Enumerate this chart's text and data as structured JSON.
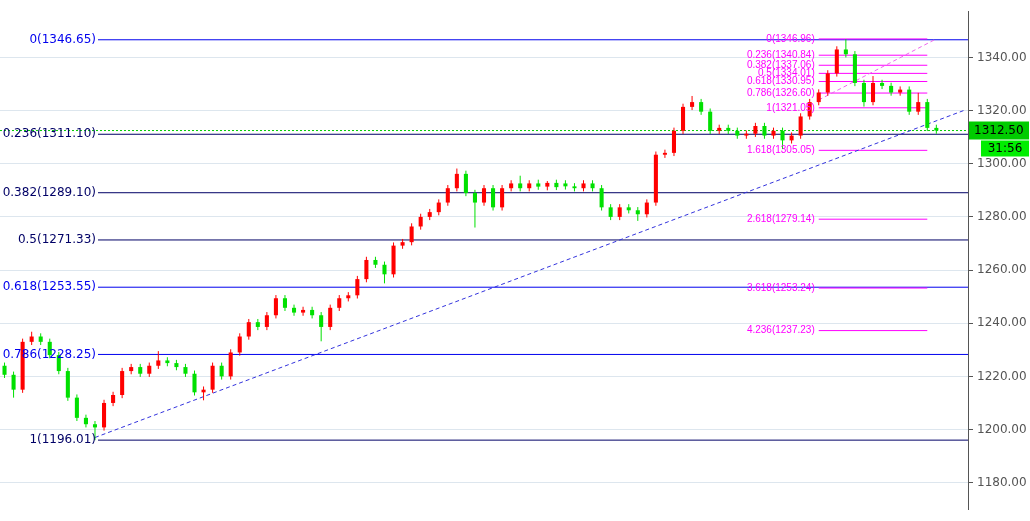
{
  "chart_data": {
    "type": "candlestick",
    "categories": [
      null,
      null,
      null,
      null,
      null,
      null,
      null,
      null,
      null,
      null,
      null,
      null,
      null,
      null,
      null,
      null,
      null,
      null,
      null,
      null,
      null,
      null,
      null,
      null,
      null,
      null,
      null,
      null,
      null,
      null,
      null,
      null,
      null,
      null,
      null,
      null,
      null,
      null,
      null,
      null,
      null,
      null,
      null,
      null,
      null,
      null,
      null,
      null,
      null,
      null,
      null,
      null,
      null,
      null,
      null,
      null,
      null,
      null,
      null,
      null,
      null,
      null,
      null,
      null,
      null,
      null,
      null,
      null,
      null,
      null,
      null,
      null,
      null,
      null,
      null,
      null,
      null,
      null,
      null,
      null,
      null,
      null,
      null,
      null,
      null,
      null,
      null,
      null,
      null,
      null,
      null,
      null,
      null,
      null,
      null,
      null,
      null,
      null,
      null,
      null,
      null,
      null,
      null,
      null,
      null,
      null,
      null
    ],
    "ohlc": [
      [
        1224,
        1225.2,
        1219.4,
        1220.6
      ],
      [
        1220.6,
        1221.8,
        1212,
        1215
      ],
      [
        1215,
        1234.2,
        1213.8,
        1233
      ],
      [
        1233,
        1236.8,
        1231.8,
        1235
      ],
      [
        1235,
        1236.2,
        1231.8,
        1233
      ],
      [
        1233,
        1234.2,
        1226.8,
        1228
      ],
      [
        1228,
        1229.2,
        1220.8,
        1222
      ],
      [
        1222,
        1223.2,
        1210.8,
        1212
      ],
      [
        1212,
        1213.2,
        1203.2,
        1204.4
      ],
      [
        1204.4,
        1205.6,
        1200.8,
        1202
      ],
      [
        1202,
        1203.2,
        1196,
        1200.8
      ],
      [
        1200.8,
        1211.2,
        1199.6,
        1210
      ],
      [
        1210,
        1214.2,
        1208.8,
        1213
      ],
      [
        1213,
        1223.2,
        1211.8,
        1222
      ],
      [
        1222,
        1224.7,
        1220.8,
        1223.5
      ],
      [
        1223.5,
        1224.7,
        1219.8,
        1221
      ],
      [
        1221,
        1225.2,
        1219.8,
        1224
      ],
      [
        1224,
        1229.5,
        1222.8,
        1226
      ],
      [
        1226,
        1227.2,
        1223.8,
        1225
      ],
      [
        1225,
        1226.2,
        1222.3,
        1223.5
      ],
      [
        1223.5,
        1224.7,
        1219.8,
        1221
      ],
      [
        1221,
        1222.2,
        1212.8,
        1214
      ],
      [
        1214,
        1216.2,
        1211,
        1215
      ],
      [
        1215,
        1225.2,
        1213.8,
        1224
      ],
      [
        1224,
        1225.2,
        1218.8,
        1220
      ],
      [
        1220,
        1230.2,
        1218.8,
        1229
      ],
      [
        1229,
        1236.2,
        1227.8,
        1235
      ],
      [
        1235,
        1241.6,
        1233.8,
        1240.4
      ],
      [
        1240.4,
        1241.6,
        1237.4,
        1238.6
      ],
      [
        1238.6,
        1244.2,
        1237.4,
        1243
      ],
      [
        1243,
        1250.6,
        1241.8,
        1249.4
      ],
      [
        1249.4,
        1250.6,
        1244.6,
        1245.8
      ],
      [
        1245.8,
        1247,
        1242.8,
        1244
      ],
      [
        1244,
        1246.2,
        1242.8,
        1245
      ],
      [
        1245,
        1246.2,
        1241.8,
        1243
      ],
      [
        1243,
        1244.2,
        1233.2,
        1238.6
      ],
      [
        1238.6,
        1247,
        1237.4,
        1245.8
      ],
      [
        1245.8,
        1250.6,
        1244.6,
        1249.4
      ],
      [
        1249.4,
        1251.7,
        1248.2,
        1250.5
      ],
      [
        1250.5,
        1257.8,
        1249.3,
        1256.6
      ],
      [
        1256.6,
        1265,
        1255.4,
        1263.8
      ],
      [
        1263.8,
        1265,
        1260.8,
        1262
      ],
      [
        1262,
        1263.2,
        1255,
        1258.4
      ],
      [
        1258.4,
        1270.4,
        1257.2,
        1269.2
      ],
      [
        1269.2,
        1271.7,
        1268,
        1270.5
      ],
      [
        1270.5,
        1277.6,
        1269.3,
        1276.4
      ],
      [
        1276.4,
        1281.2,
        1275.2,
        1280
      ],
      [
        1280,
        1283,
        1278.8,
        1281.8
      ],
      [
        1281.8,
        1286.6,
        1280.6,
        1285.4
      ],
      [
        1285.4,
        1292,
        1284.2,
        1290.8
      ],
      [
        1290.8,
        1298.2,
        1289.6,
        1296.2
      ],
      [
        1296.2,
        1297.4,
        1287.8,
        1289
      ],
      [
        1289,
        1290.2,
        1276,
        1285.4
      ],
      [
        1285.4,
        1292,
        1284.2,
        1290.8
      ],
      [
        1290.8,
        1292,
        1282.4,
        1283.6
      ],
      [
        1283.6,
        1292,
        1282.4,
        1290.8
      ],
      [
        1290.8,
        1293.8,
        1289.6,
        1292.6
      ],
      [
        1292.6,
        1295.5,
        1289.6,
        1290.8
      ],
      [
        1290.8,
        1293.8,
        1289.6,
        1292.6
      ],
      [
        1292.6,
        1294,
        1290.2,
        1291.4
      ],
      [
        1291.4,
        1293.5,
        1290,
        1292.8
      ],
      [
        1292.8,
        1294,
        1290.1,
        1291.2
      ],
      [
        1292.6,
        1293.8,
        1290.3,
        1291.5
      ],
      [
        1291.5,
        1292.7,
        1289.6,
        1290.8
      ],
      [
        1290.8,
        1293.8,
        1289.6,
        1292.6
      ],
      [
        1292.6,
        1293.8,
        1289.6,
        1290.8
      ],
      [
        1290.8,
        1292,
        1282.4,
        1283.6
      ],
      [
        1283.6,
        1284.8,
        1278.8,
        1280
      ],
      [
        1280,
        1284.8,
        1278.8,
        1283.6
      ],
      [
        1283.6,
        1284.8,
        1281.3,
        1282.5
      ],
      [
        1282.5,
        1283.7,
        1278.5,
        1281
      ],
      [
        1281,
        1286.6,
        1279.8,
        1285.4
      ],
      [
        1285.4,
        1304.6,
        1284.2,
        1303.4
      ],
      [
        1303.4,
        1305.3,
        1302.2,
        1304.1
      ],
      [
        1304.1,
        1313.6,
        1302.9,
        1312.4
      ],
      [
        1312.4,
        1322.6,
        1311.2,
        1321.4
      ],
      [
        1321.4,
        1325.5,
        1320.2,
        1323.2
      ],
      [
        1323.2,
        1324.4,
        1318.4,
        1319.6
      ],
      [
        1319.6,
        1320.8,
        1311.2,
        1312.4
      ],
      [
        1312.4,
        1314.7,
        1311.2,
        1313.5
      ],
      [
        1313.5,
        1314.7,
        1311.2,
        1312.4
      ],
      [
        1312.4,
        1313.6,
        1309.4,
        1310.6
      ],
      [
        1310.6,
        1312.5,
        1309.4,
        1311.3
      ],
      [
        1311.3,
        1315.4,
        1310.1,
        1314.2
      ],
      [
        1314.2,
        1315.4,
        1309.4,
        1310.6
      ],
      [
        1310.6,
        1313.6,
        1309.4,
        1312.4
      ],
      [
        1312.4,
        1313.6,
        1305.5,
        1308.8
      ],
      [
        1308.8,
        1311.8,
        1307.6,
        1310.6
      ],
      [
        1310.6,
        1319,
        1309.4,
        1317.8
      ],
      [
        1317.8,
        1324.4,
        1316.6,
        1323.2
      ],
      [
        1323.2,
        1328,
        1322,
        1326.8
      ],
      [
        1326.8,
        1335.2,
        1325.6,
        1334
      ],
      [
        1334,
        1344.2,
        1332.8,
        1343
      ],
      [
        1343,
        1346.9,
        1340,
        1341.2
      ],
      [
        1341.2,
        1342.4,
        1329.2,
        1330.4
      ],
      [
        1330.4,
        1331.6,
        1321.5,
        1323.2
      ],
      [
        1323.2,
        1333,
        1322,
        1330.4
      ],
      [
        1330.4,
        1331.6,
        1328.1,
        1329.3
      ],
      [
        1329.3,
        1330.5,
        1325.6,
        1326.8
      ],
      [
        1326.8,
        1329.1,
        1325.6,
        1327.9
      ],
      [
        1327.9,
        1329.1,
        1318.4,
        1319.6
      ],
      [
        1319.6,
        1326.7,
        1318.4,
        1323.2
      ],
      [
        1323.2,
        1324.4,
        1312.3,
        1313.5
      ],
      [
        1313.5,
        1314.7,
        1311.3,
        1312.5
      ],
      null,
      null,
      null
    ],
    "series": [
      {
        "type": "line",
        "color": "#3333dd",
        "line_style": "dashed",
        "values": [
          null,
          null,
          null,
          null,
          null,
          null,
          null,
          null,
          null,
          null,
          1197,
          null,
          null,
          null,
          null,
          null,
          null,
          null,
          null,
          null,
          null,
          null,
          null,
          null,
          null,
          null,
          null,
          null,
          null,
          null,
          null,
          null,
          null,
          null,
          null,
          null,
          null,
          null,
          null,
          null,
          null,
          null,
          null,
          null,
          null,
          null,
          null,
          null,
          null,
          null,
          null,
          null,
          null,
          null,
          null,
          null,
          null,
          null,
          null,
          null,
          null,
          null,
          null,
          null,
          null,
          null,
          null,
          null,
          null,
          null,
          null,
          null,
          null,
          null,
          null,
          null,
          null,
          null,
          null,
          null,
          null,
          null,
          null,
          null,
          null,
          null,
          null,
          null,
          null,
          null,
          null,
          null,
          null,
          null,
          null,
          null,
          null,
          null,
          null,
          null,
          null,
          null,
          null,
          null,
          null,
          null,
          1320
        ]
      },
      {
        "type": "line",
        "color": "#ee66ee",
        "line_style": "dashed",
        "values": [
          null,
          null,
          null,
          null,
          null,
          null,
          null,
          null,
          null,
          null,
          null,
          null,
          null,
          null,
          null,
          null,
          null,
          null,
          null,
          null,
          null,
          null,
          null,
          null,
          null,
          null,
          null,
          null,
          null,
          null,
          null,
          null,
          null,
          null,
          null,
          null,
          null,
          null,
          null,
          null,
          null,
          null,
          null,
          null,
          null,
          null,
          null,
          null,
          null,
          null,
          null,
          null,
          null,
          null,
          null,
          null,
          null,
          null,
          null,
          null,
          null,
          null,
          null,
          null,
          null,
          null,
          null,
          null,
          null,
          null,
          null,
          null,
          null,
          null,
          null,
          null,
          null,
          null,
          null,
          null,
          null,
          null,
          null,
          null,
          null,
          null,
          null,
          null,
          null,
          null,
          1324,
          null,
          null,
          null,
          null,
          null,
          null,
          null,
          null,
          null,
          null,
          null,
          null,
          1347,
          null,
          null,
          null
        ]
      },
      {
        "type": "line",
        "name": "0(1346.96)",
        "color": "#ff00ff",
        "line_style": "solid",
        "values": [
          null,
          null,
          null,
          null,
          null,
          null,
          null,
          null,
          null,
          null,
          null,
          null,
          null,
          null,
          null,
          null,
          null,
          null,
          null,
          null,
          null,
          null,
          null,
          null,
          null,
          null,
          null,
          null,
          null,
          null,
          null,
          null,
          null,
          null,
          null,
          null,
          null,
          null,
          null,
          null,
          null,
          null,
          null,
          null,
          null,
          null,
          null,
          null,
          null,
          null,
          null,
          null,
          null,
          null,
          null,
          null,
          null,
          null,
          null,
          null,
          null,
          null,
          null,
          null,
          null,
          null,
          null,
          null,
          null,
          null,
          null,
          null,
          null,
          null,
          null,
          null,
          null,
          null,
          null,
          null,
          null,
          null,
          null,
          null,
          null,
          null,
          null,
          null,
          null,
          null,
          1346.96,
          null,
          null,
          null,
          null,
          null,
          null,
          null,
          null,
          null,
          null,
          null,
          1346.96,
          null,
          null,
          null,
          null
        ]
      },
      {
        "type": "line",
        "name": "0.236(1340.84)",
        "color": "#ff00ff",
        "line_style": "solid",
        "values": [
          null,
          null,
          null,
          null,
          null,
          null,
          null,
          null,
          null,
          null,
          null,
          null,
          null,
          null,
          null,
          null,
          null,
          null,
          null,
          null,
          null,
          null,
          null,
          null,
          null,
          null,
          null,
          null,
          null,
          null,
          null,
          null,
          null,
          null,
          null,
          null,
          null,
          null,
          null,
          null,
          null,
          null,
          null,
          null,
          null,
          null,
          null,
          null,
          null,
          null,
          null,
          null,
          null,
          null,
          null,
          null,
          null,
          null,
          null,
          null,
          null,
          null,
          null,
          null,
          null,
          null,
          null,
          null,
          null,
          null,
          null,
          null,
          null,
          null,
          null,
          null,
          null,
          null,
          null,
          null,
          null,
          null,
          null,
          null,
          null,
          null,
          null,
          null,
          null,
          null,
          1340.84,
          null,
          null,
          null,
          null,
          null,
          null,
          null,
          null,
          null,
          null,
          null,
          1340.84,
          null,
          null,
          null,
          null
        ]
      },
      {
        "type": "line",
        "name": "0.382(1337.06)",
        "color": "#ff00ff",
        "line_style": "solid",
        "values": [
          null,
          null,
          null,
          null,
          null,
          null,
          null,
          null,
          null,
          null,
          null,
          null,
          null,
          null,
          null,
          null,
          null,
          null,
          null,
          null,
          null,
          null,
          null,
          null,
          null,
          null,
          null,
          null,
          null,
          null,
          null,
          null,
          null,
          null,
          null,
          null,
          null,
          null,
          null,
          null,
          null,
          null,
          null,
          null,
          null,
          null,
          null,
          null,
          null,
          null,
          null,
          null,
          null,
          null,
          null,
          null,
          null,
          null,
          null,
          null,
          null,
          null,
          null,
          null,
          null,
          null,
          null,
          null,
          null,
          null,
          null,
          null,
          null,
          null,
          null,
          null,
          null,
          null,
          null,
          null,
          null,
          null,
          null,
          null,
          null,
          null,
          null,
          null,
          null,
          null,
          1337.06,
          null,
          null,
          null,
          null,
          null,
          null,
          null,
          null,
          null,
          null,
          null,
          1337.06,
          null,
          null,
          null,
          null
        ]
      },
      {
        "type": "line",
        "name": "0.5(1334.01)",
        "color": "#ff00ff",
        "line_style": "solid",
        "values": [
          null,
          null,
          null,
          null,
          null,
          null,
          null,
          null,
          null,
          null,
          null,
          null,
          null,
          null,
          null,
          null,
          null,
          null,
          null,
          null,
          null,
          null,
          null,
          null,
          null,
          null,
          null,
          null,
          null,
          null,
          null,
          null,
          null,
          null,
          null,
          null,
          null,
          null,
          null,
          null,
          null,
          null,
          null,
          null,
          null,
          null,
          null,
          null,
          null,
          null,
          null,
          null,
          null,
          null,
          null,
          null,
          null,
          null,
          null,
          null,
          null,
          null,
          null,
          null,
          null,
          null,
          null,
          null,
          null,
          null,
          null,
          null,
          null,
          null,
          null,
          null,
          null,
          null,
          null,
          null,
          null,
          null,
          null,
          null,
          null,
          null,
          null,
          null,
          null,
          null,
          1334.01,
          null,
          null,
          null,
          null,
          null,
          null,
          null,
          null,
          null,
          null,
          null,
          1334.01,
          null,
          null,
          null,
          null
        ]
      },
      {
        "type": "line",
        "name": "0.618(1330.95)",
        "color": "#ff00ff",
        "line_style": "solid",
        "values": [
          null,
          null,
          null,
          null,
          null,
          null,
          null,
          null,
          null,
          null,
          null,
          null,
          null,
          null,
          null,
          null,
          null,
          null,
          null,
          null,
          null,
          null,
          null,
          null,
          null,
          null,
          null,
          null,
          null,
          null,
          null,
          null,
          null,
          null,
          null,
          null,
          null,
          null,
          null,
          null,
          null,
          null,
          null,
          null,
          null,
          null,
          null,
          null,
          null,
          null,
          null,
          null,
          null,
          null,
          null,
          null,
          null,
          null,
          null,
          null,
          null,
          null,
          null,
          null,
          null,
          null,
          null,
          null,
          null,
          null,
          null,
          null,
          null,
          null,
          null,
          null,
          null,
          null,
          null,
          null,
          null,
          null,
          null,
          null,
          null,
          null,
          null,
          null,
          null,
          null,
          1330.95,
          null,
          null,
          null,
          null,
          null,
          null,
          null,
          null,
          null,
          null,
          null,
          1330.95,
          null,
          null,
          null,
          null
        ]
      },
      {
        "type": "line",
        "name": "0.786(1326.60)",
        "color": "#ff00ff",
        "line_style": "solid",
        "values": [
          null,
          null,
          null,
          null,
          null,
          null,
          null,
          null,
          null,
          null,
          null,
          null,
          null,
          null,
          null,
          null,
          null,
          null,
          null,
          null,
          null,
          null,
          null,
          null,
          null,
          null,
          null,
          null,
          null,
          null,
          null,
          null,
          null,
          null,
          null,
          null,
          null,
          null,
          null,
          null,
          null,
          null,
          null,
          null,
          null,
          null,
          null,
          null,
          null,
          null,
          null,
          null,
          null,
          null,
          null,
          null,
          null,
          null,
          null,
          null,
          null,
          null,
          null,
          null,
          null,
          null,
          null,
          null,
          null,
          null,
          null,
          null,
          null,
          null,
          null,
          null,
          null,
          null,
          null,
          null,
          null,
          null,
          null,
          null,
          null,
          null,
          null,
          null,
          null,
          null,
          1326.6,
          null,
          null,
          null,
          null,
          null,
          null,
          null,
          null,
          null,
          null,
          null,
          1326.6,
          null,
          null,
          null,
          null
        ]
      },
      {
        "type": "line",
        "name": "1(1321.05)",
        "color": "#ff00ff",
        "line_style": "solid",
        "values": [
          null,
          null,
          null,
          null,
          null,
          null,
          null,
          null,
          null,
          null,
          null,
          null,
          null,
          null,
          null,
          null,
          null,
          null,
          null,
          null,
          null,
          null,
          null,
          null,
          null,
          null,
          null,
          null,
          null,
          null,
          null,
          null,
          null,
          null,
          null,
          null,
          null,
          null,
          null,
          null,
          null,
          null,
          null,
          null,
          null,
          null,
          null,
          null,
          null,
          null,
          null,
          null,
          null,
          null,
          null,
          null,
          null,
          null,
          null,
          null,
          null,
          null,
          null,
          null,
          null,
          null,
          null,
          null,
          null,
          null,
          null,
          null,
          null,
          null,
          null,
          null,
          null,
          null,
          null,
          null,
          null,
          null,
          null,
          null,
          null,
          null,
          null,
          null,
          null,
          null,
          1321.05,
          null,
          null,
          null,
          null,
          null,
          null,
          null,
          null,
          null,
          null,
          null,
          1321.05,
          null,
          null,
          null,
          null
        ]
      },
      {
        "type": "line",
        "name": "1.618(1305.05)",
        "color": "#ff00ff",
        "line_style": "solid",
        "values": [
          null,
          null,
          null,
          null,
          null,
          null,
          null,
          null,
          null,
          null,
          null,
          null,
          null,
          null,
          null,
          null,
          null,
          null,
          null,
          null,
          null,
          null,
          null,
          null,
          null,
          null,
          null,
          null,
          null,
          null,
          null,
          null,
          null,
          null,
          null,
          null,
          null,
          null,
          null,
          null,
          null,
          null,
          null,
          null,
          null,
          null,
          null,
          null,
          null,
          null,
          null,
          null,
          null,
          null,
          null,
          null,
          null,
          null,
          null,
          null,
          null,
          null,
          null,
          null,
          null,
          null,
          null,
          null,
          null,
          null,
          null,
          null,
          null,
          null,
          null,
          null,
          null,
          null,
          null,
          null,
          null,
          null,
          null,
          null,
          null,
          null,
          null,
          null,
          null,
          null,
          1305.05,
          null,
          null,
          null,
          null,
          null,
          null,
          null,
          null,
          null,
          null,
          null,
          1305.05,
          null,
          null,
          null,
          null
        ]
      },
      {
        "type": "line",
        "name": "2.618(1279.14)",
        "color": "#ff00ff",
        "line_style": "solid",
        "values": [
          null,
          null,
          null,
          null,
          null,
          null,
          null,
          null,
          null,
          null,
          null,
          null,
          null,
          null,
          null,
          null,
          null,
          null,
          null,
          null,
          null,
          null,
          null,
          null,
          null,
          null,
          null,
          null,
          null,
          null,
          null,
          null,
          null,
          null,
          null,
          null,
          null,
          null,
          null,
          null,
          null,
          null,
          null,
          null,
          null,
          null,
          null,
          null,
          null,
          null,
          null,
          null,
          null,
          null,
          null,
          null,
          null,
          null,
          null,
          null,
          null,
          null,
          null,
          null,
          null,
          null,
          null,
          null,
          null,
          null,
          null,
          null,
          null,
          null,
          null,
          null,
          null,
          null,
          null,
          null,
          null,
          null,
          null,
          null,
          null,
          null,
          null,
          null,
          null,
          null,
          1279.14,
          null,
          null,
          null,
          null,
          null,
          null,
          null,
          null,
          null,
          null,
          null,
          1279.14,
          null,
          null,
          null,
          null
        ]
      },
      {
        "type": "line",
        "name": "3.618(1253.24)",
        "color": "#ff00ff",
        "line_style": "solid",
        "values": [
          null,
          null,
          null,
          null,
          null,
          null,
          null,
          null,
          null,
          null,
          null,
          null,
          null,
          null,
          null,
          null,
          null,
          null,
          null,
          null,
          null,
          null,
          null,
          null,
          null,
          null,
          null,
          null,
          null,
          null,
          null,
          null,
          null,
          null,
          null,
          null,
          null,
          null,
          null,
          null,
          null,
          null,
          null,
          null,
          null,
          null,
          null,
          null,
          null,
          null,
          null,
          null,
          null,
          null,
          null,
          null,
          null,
          null,
          null,
          null,
          null,
          null,
          null,
          null,
          null,
          null,
          null,
          null,
          null,
          null,
          null,
          null,
          null,
          null,
          null,
          null,
          null,
          null,
          null,
          null,
          null,
          null,
          null,
          null,
          null,
          null,
          null,
          null,
          null,
          null,
          1253.24,
          null,
          null,
          null,
          null,
          null,
          null,
          null,
          null,
          null,
          null,
          null,
          1253.24,
          null,
          null,
          null,
          null
        ]
      },
      {
        "type": "line",
        "name": "4.236(1237.23)",
        "color": "#ff00ff",
        "line_style": "solid",
        "values": [
          null,
          null,
          null,
          null,
          null,
          null,
          null,
          null,
          null,
          null,
          null,
          null,
          null,
          null,
          null,
          null,
          null,
          null,
          null,
          null,
          null,
          null,
          null,
          null,
          null,
          null,
          null,
          null,
          null,
          null,
          null,
          null,
          null,
          null,
          null,
          null,
          null,
          null,
          null,
          null,
          null,
          null,
          null,
          null,
          null,
          null,
          null,
          null,
          null,
          null,
          null,
          null,
          null,
          null,
          null,
          null,
          null,
          null,
          null,
          null,
          null,
          null,
          null,
          null,
          null,
          null,
          null,
          null,
          null,
          null,
          null,
          null,
          null,
          null,
          null,
          null,
          null,
          null,
          null,
          null,
          null,
          null,
          null,
          null,
          null,
          null,
          null,
          null,
          null,
          null,
          1237.23,
          null,
          null,
          null,
          null,
          null,
          null,
          null,
          null,
          null,
          null,
          null,
          1237.23,
          null,
          null,
          null,
          null
        ]
      }
    ],
    "ref_lines": [
      {
        "axis": "y",
        "value": 1346.65,
        "label": "0(1346.65)",
        "color": "#0000ee"
      },
      {
        "axis": "y",
        "value": 1311.1,
        "label": "0.236(1311.10)",
        "color": "#000066"
      },
      {
        "axis": "y",
        "value": 1289.1,
        "label": "0.382(1289.10)",
        "color": "#000066"
      },
      {
        "axis": "y",
        "value": 1271.33,
        "label": "0.5(1271.33)",
        "color": "#000066"
      },
      {
        "axis": "y",
        "value": 1253.55,
        "label": "0.618(1253.55)",
        "color": "#0000ee"
      },
      {
        "axis": "y",
        "value": 1228.25,
        "label": "0.786(1228.25)",
        "color": "#0000ee"
      },
      {
        "axis": "y",
        "value": 1196.01,
        "label": "1(1196.01)",
        "color": "#000066"
      },
      {
        "axis": "y",
        "value": 1312.5,
        "label": "1312.50",
        "color": "#00cc00",
        "line_style": "dotted"
      }
    ],
    "annotations": [
      "31:56"
    ],
    "ylim": [
      1169.8,
      1357.4
    ],
    "yticks": [
      {
        "value": 1180,
        "label": "1180.00"
      },
      {
        "value": 1200,
        "label": "1200.00"
      },
      {
        "value": 1220,
        "label": "1220.00"
      },
      {
        "value": 1240,
        "label": "1240.00"
      },
      {
        "value": 1260,
        "label": "1260.00"
      },
      {
        "value": 1280,
        "label": "1280.00"
      },
      {
        "value": 1300,
        "label": "1300.00"
      },
      {
        "value": 1320,
        "label": "1320.00"
      },
      {
        "value": 1340,
        "label": "1340.00"
      }
    ],
    "tick_labels": "y",
    "grid": "y",
    "legend": false
  }
}
